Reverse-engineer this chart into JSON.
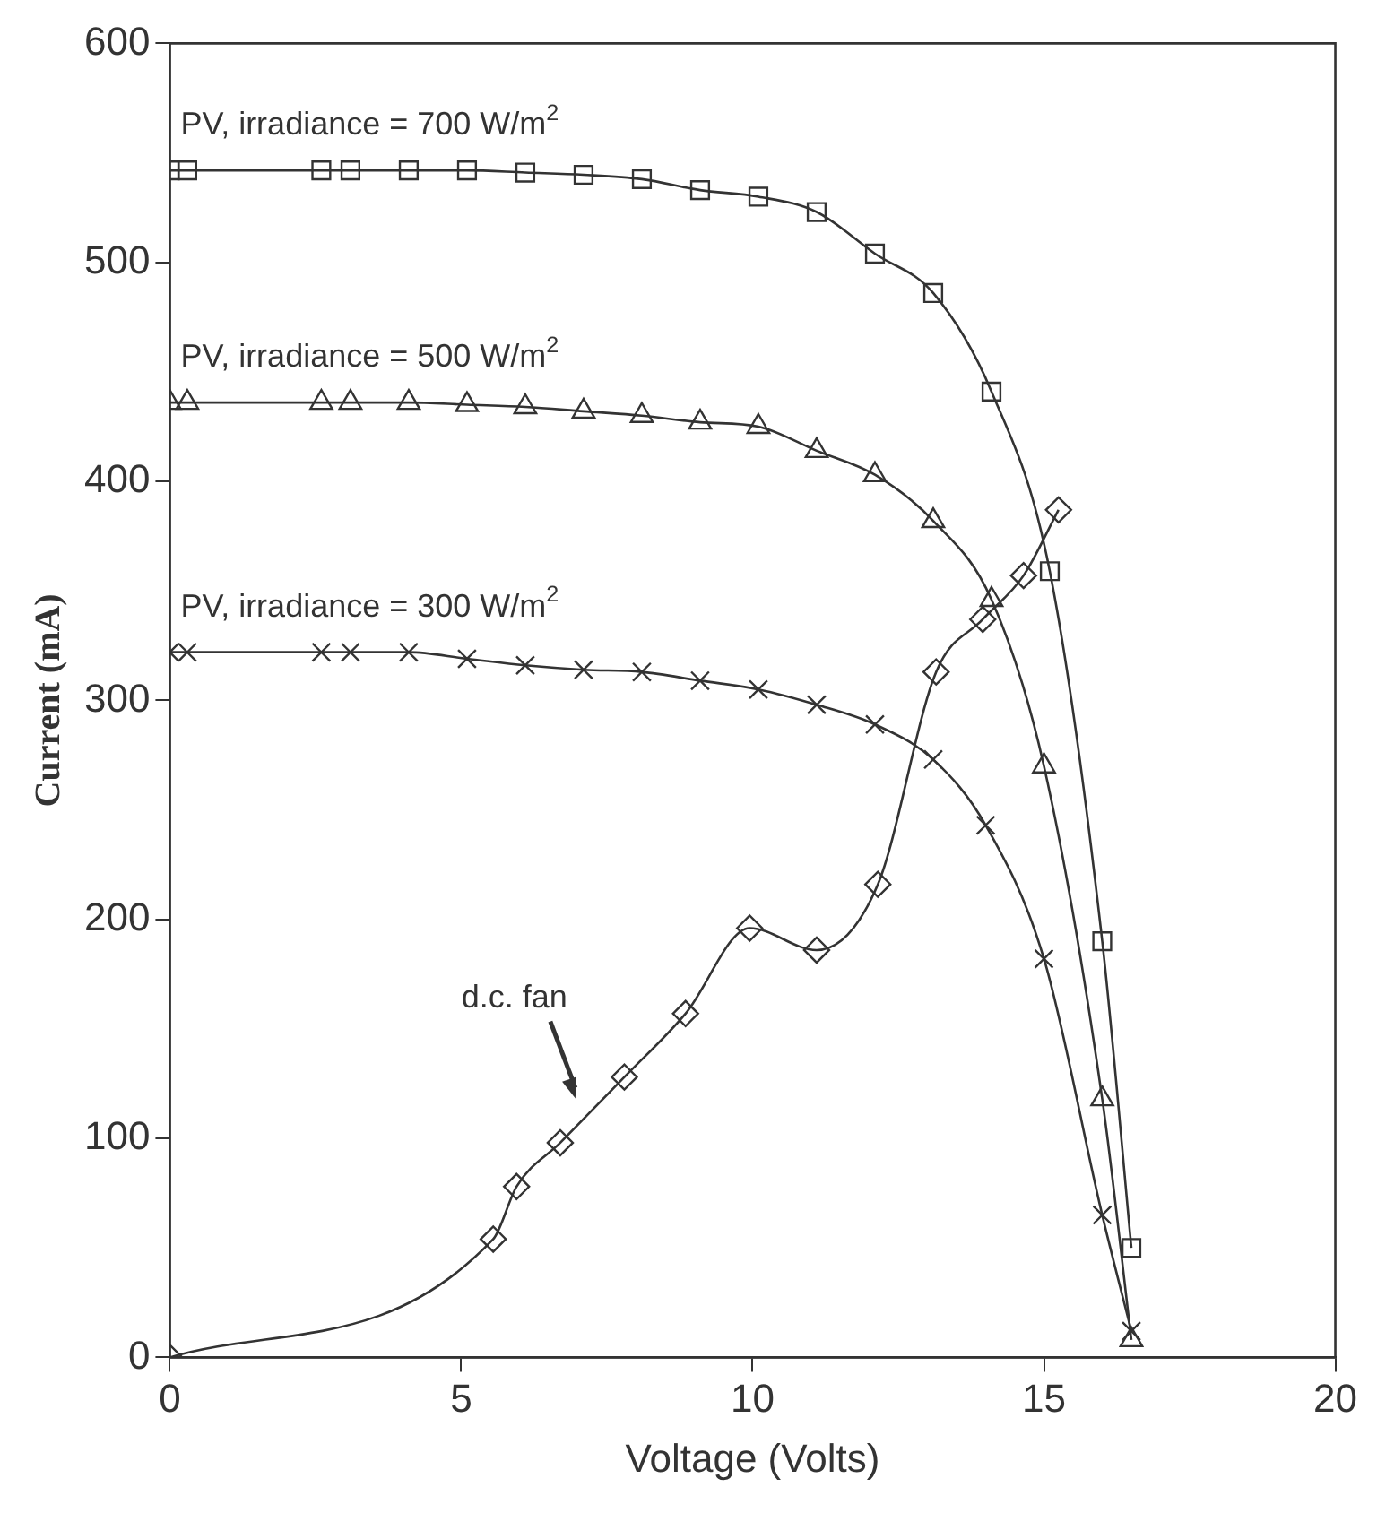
{
  "chart_data": {
    "type": "line",
    "xlabel": "Voltage (Volts)",
    "ylabel": "Current (mA)",
    "xlim": [
      0,
      20
    ],
    "ylim": [
      0,
      600
    ],
    "xticks": [
      0,
      5,
      10,
      15,
      20
    ],
    "yticks": [
      0,
      100,
      200,
      300,
      400,
      500,
      600
    ],
    "grid": false,
    "legend": false,
    "line_style": "solid",
    "annotations": [
      "d.c. fan"
    ],
    "series": [
      {
        "name": "PV, irradiance = 700 W/m$^{2}$",
        "color": "#333333",
        "marker": "square",
        "x": [
          0,
          0.3,
          2.6,
          3.1,
          4.1,
          5.1,
          6.1,
          7.1,
          8.1,
          9.1,
          10.1,
          11.1,
          12.1,
          13.1,
          14.1,
          15.1,
          16,
          16.5
        ],
        "values": [
          542,
          542,
          542,
          542,
          542,
          542,
          541,
          540,
          538,
          533,
          530,
          523,
          504,
          486,
          441,
          359,
          190,
          50
        ]
      },
      {
        "name": "PV, irradiance = 500 W/m$^{2}$",
        "color": "#333333",
        "marker": "triangle",
        "x": [
          0,
          0.3,
          2.6,
          3.1,
          4.1,
          5.1,
          6.1,
          7.1,
          8.1,
          9.1,
          10.1,
          11.1,
          12.1,
          13.1,
          14.1,
          15,
          16,
          16.5
        ],
        "values": [
          436,
          436,
          436,
          436,
          436,
          435,
          434,
          432,
          430,
          427,
          425,
          414,
          403,
          382,
          346,
          270,
          118,
          8
        ]
      },
      {
        "name": "PV, irradiance = 300 W/m$^{2}$",
        "color": "#333333",
        "marker": "cross",
        "x": [
          0,
          0.3,
          2.6,
          3.1,
          4.1,
          5.1,
          6.1,
          7.1,
          8.1,
          9.1,
          10.1,
          11.1,
          12.1,
          13.1,
          14,
          15,
          16,
          16.5
        ],
        "values": [
          322,
          322,
          322,
          322,
          322,
          319,
          316,
          314,
          313,
          309,
          305,
          298,
          289,
          273,
          243,
          182,
          65,
          12
        ]
      },
      {
        "color": "#333333",
        "marker": "diamond",
        "x": [
          0,
          5.55,
          5.95,
          6.7,
          7.8,
          8.85,
          9.95,
          11.1,
          12.15,
          13.15,
          13.95,
          14.65,
          15.25
        ],
        "values": [
          0,
          54,
          78,
          98,
          128,
          157,
          196,
          186,
          216,
          313,
          337,
          357,
          387
        ]
      }
    ]
  }
}
